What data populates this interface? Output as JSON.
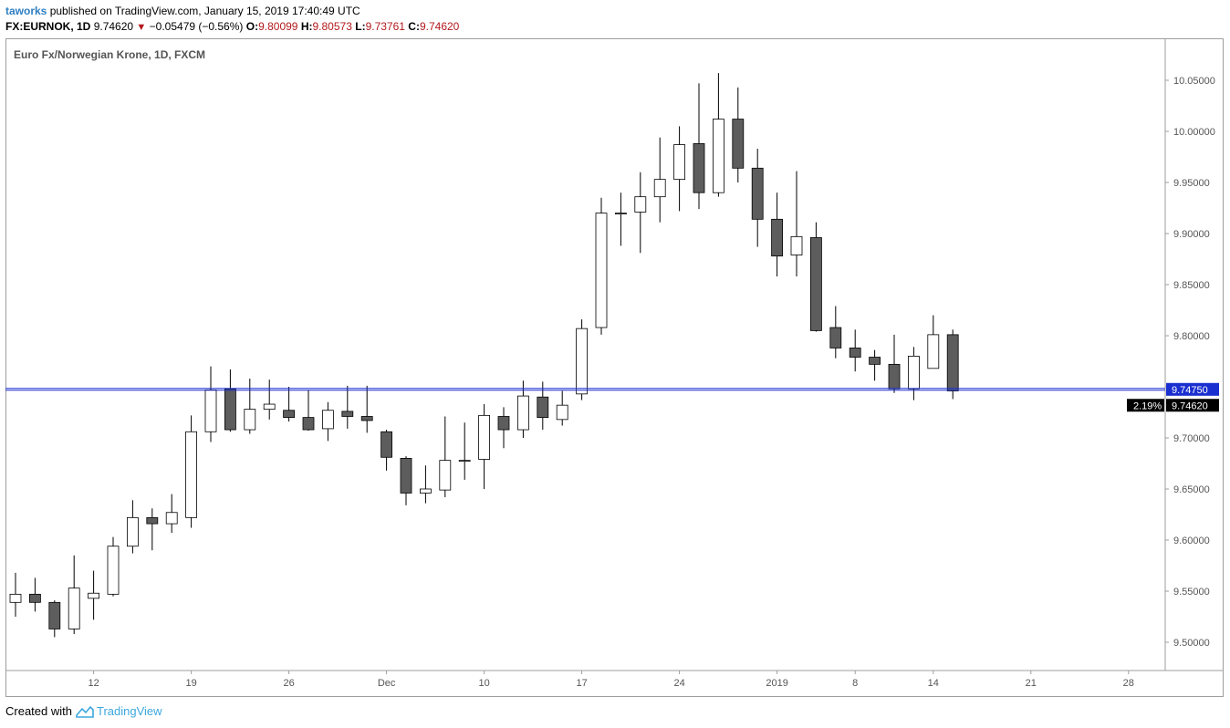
{
  "header": {
    "user": "taworks",
    "published_text": "published on TradingView.com, January 15, 2019 17:40:49 UTC",
    "symbol": "FX:EURNOK, 1D",
    "last": "9.74620",
    "change": "−0.05479 (−0.56%)",
    "open_label": "O:",
    "open": "9.80099",
    "high_label": "H:",
    "high": "9.80573",
    "low_label": "L:",
    "low": "9.73761",
    "close_label": "C:",
    "close": "9.74620"
  },
  "footer": {
    "created_with": "Created with",
    "brand": "TradingView"
  },
  "colors": {
    "up_fill": "#ffffff",
    "down_fill": "#5d5d5d",
    "wick": "#000000",
    "hline": "#1a2fd0",
    "label_bg": "#000000"
  },
  "chart_data": {
    "type": "candlestick",
    "title": "Euro Fx/Norwegian Krone, 1D, FXCM",
    "ylim": [
      9.465,
      10.075
    ],
    "y_ticks": [
      "9.50000",
      "9.55000",
      "9.60000",
      "9.65000",
      "9.70000",
      "9.75000",
      "9.80000",
      "9.85000",
      "9.90000",
      "9.95000",
      "10.00000",
      "10.05000"
    ],
    "x_labels": [
      {
        "label": "12",
        "x": 4
      },
      {
        "label": "19",
        "x": 9
      },
      {
        "label": "26",
        "x": 14
      },
      {
        "label": "Dec",
        "x": 19
      },
      {
        "label": "10",
        "x": 24
      },
      {
        "label": "17",
        "x": 29
      },
      {
        "label": "24",
        "x": 34
      },
      {
        "label": "2019",
        "x": 39
      },
      {
        "label": "8",
        "x": 43
      },
      {
        "label": "14",
        "x": 47
      },
      {
        "label": "21",
        "x": 52
      },
      {
        "label": "28",
        "x": 57
      }
    ],
    "horizontal_line": {
      "value": 9.7475,
      "label": "9.74750"
    },
    "last_price": {
      "value": 9.7462,
      "label": "9.74620",
      "pct_label": "2.19%"
    },
    "candles": [
      {
        "o": 9.539,
        "h": 9.568,
        "l": 9.525,
        "c": 9.547
      },
      {
        "o": 9.547,
        "h": 9.563,
        "l": 9.53,
        "c": 9.539
      },
      {
        "o": 9.539,
        "h": 9.541,
        "l": 9.505,
        "c": 9.513
      },
      {
        "o": 9.513,
        "h": 9.585,
        "l": 9.508,
        "c": 9.553
      },
      {
        "o": 9.543,
        "h": 9.57,
        "l": 9.522,
        "c": 9.548
      },
      {
        "o": 9.547,
        "h": 9.603,
        "l": 9.545,
        "c": 9.594
      },
      {
        "o": 9.594,
        "h": 9.639,
        "l": 9.587,
        "c": 9.622
      },
      {
        "o": 9.622,
        "h": 9.631,
        "l": 9.59,
        "c": 9.616
      },
      {
        "o": 9.616,
        "h": 9.645,
        "l": 9.607,
        "c": 9.627
      },
      {
        "o": 9.622,
        "h": 9.722,
        "l": 9.612,
        "c": 9.706
      },
      {
        "o": 9.706,
        "h": 9.77,
        "l": 9.696,
        "c": 9.747
      },
      {
        "o": 9.748,
        "h": 9.767,
        "l": 9.706,
        "c": 9.708
      },
      {
        "o": 9.708,
        "h": 9.758,
        "l": 9.704,
        "c": 9.728
      },
      {
        "o": 9.728,
        "h": 9.757,
        "l": 9.718,
        "c": 9.733
      },
      {
        "o": 9.727,
        "h": 9.75,
        "l": 9.716,
        "c": 9.72
      },
      {
        "o": 9.72,
        "h": 9.747,
        "l": 9.707,
        "c": 9.708
      },
      {
        "o": 9.709,
        "h": 9.735,
        "l": 9.697,
        "c": 9.727
      },
      {
        "o": 9.726,
        "h": 9.751,
        "l": 9.709,
        "c": 9.721
      },
      {
        "o": 9.721,
        "h": 9.751,
        "l": 9.705,
        "c": 9.717
      },
      {
        "o": 9.706,
        "h": 9.708,
        "l": 9.668,
        "c": 9.681
      },
      {
        "o": 9.68,
        "h": 9.682,
        "l": 9.634,
        "c": 9.646
      },
      {
        "o": 9.646,
        "h": 9.673,
        "l": 9.636,
        "c": 9.65
      },
      {
        "o": 9.649,
        "h": 9.721,
        "l": 9.642,
        "c": 9.678
      },
      {
        "o": 9.678,
        "h": 9.715,
        "l": 9.659,
        "c": 9.678
      },
      {
        "o": 9.679,
        "h": 9.733,
        "l": 9.65,
        "c": 9.722
      },
      {
        "o": 9.721,
        "h": 9.73,
        "l": 9.69,
        "c": 9.708
      },
      {
        "o": 9.708,
        "h": 9.756,
        "l": 9.7,
        "c": 9.741
      },
      {
        "o": 9.74,
        "h": 9.755,
        "l": 9.708,
        "c": 9.72
      },
      {
        "o": 9.718,
        "h": 9.746,
        "l": 9.712,
        "c": 9.732
      },
      {
        "o": 9.743,
        "h": 9.816,
        "l": 9.737,
        "c": 9.807
      },
      {
        "o": 9.808,
        "h": 9.935,
        "l": 9.801,
        "c": 9.92
      },
      {
        "o": 9.92,
        "h": 9.94,
        "l": 9.888,
        "c": 9.92
      },
      {
        "o": 9.921,
        "h": 9.96,
        "l": 9.881,
        "c": 9.936
      },
      {
        "o": 9.936,
        "h": 9.994,
        "l": 9.911,
        "c": 9.953
      },
      {
        "o": 9.953,
        "h": 10.005,
        "l": 9.922,
        "c": 9.987
      },
      {
        "o": 9.988,
        "h": 10.047,
        "l": 9.924,
        "c": 9.94
      },
      {
        "o": 9.94,
        "h": 10.057,
        "l": 9.936,
        "c": 10.012
      },
      {
        "o": 10.012,
        "h": 10.043,
        "l": 9.95,
        "c": 9.964
      },
      {
        "o": 9.964,
        "h": 9.983,
        "l": 9.887,
        "c": 9.914
      },
      {
        "o": 9.914,
        "h": 9.94,
        "l": 9.858,
        "c": 9.878
      },
      {
        "o": 9.879,
        "h": 9.961,
        "l": 9.858,
        "c": 9.897
      },
      {
        "o": 9.896,
        "h": 9.911,
        "l": 9.804,
        "c": 9.805
      },
      {
        "o": 9.808,
        "h": 9.829,
        "l": 9.778,
        "c": 9.788
      },
      {
        "o": 9.788,
        "h": 9.806,
        "l": 9.765,
        "c": 9.779
      },
      {
        "o": 9.779,
        "h": 9.786,
        "l": 9.756,
        "c": 9.772
      },
      {
        "o": 9.772,
        "h": 9.801,
        "l": 9.744,
        "c": 9.748
      },
      {
        "o": 9.748,
        "h": 9.789,
        "l": 9.737,
        "c": 9.78
      },
      {
        "o": 9.768,
        "h": 9.82,
        "l": 9.768,
        "c": 9.801
      },
      {
        "o": 9.801,
        "h": 9.806,
        "l": 9.738,
        "c": 9.746
      }
    ]
  }
}
